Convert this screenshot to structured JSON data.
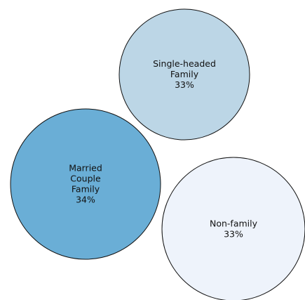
{
  "chart_data": {
    "type": "bubble",
    "title": "",
    "xlabel": "",
    "ylabel": "",
    "grid": false,
    "legend": "none",
    "series": [
      {
        "label_lines": [
          "Single-headed",
          "Family"
        ],
        "value_label": "33%",
        "value": 33,
        "color": "#bcd6e6"
      },
      {
        "label_lines": [
          "Married",
          "Couple",
          "Family"
        ],
        "value_label": "34%",
        "value": 34,
        "color": "#6aaed6"
      },
      {
        "label_lines": [
          "Non-family"
        ],
        "value_label": "33%",
        "value": 33,
        "color": "#eef3fb"
      }
    ]
  }
}
